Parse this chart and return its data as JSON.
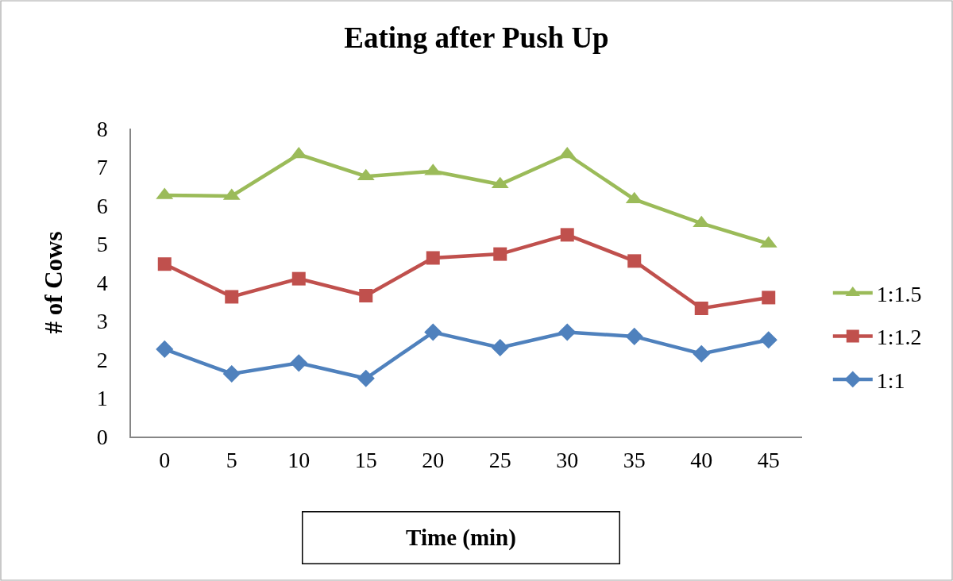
{
  "chart_data": {
    "type": "line",
    "title": "Eating after Push Up",
    "xlabel": "Time (min)",
    "ylabel": "# of Cows",
    "categories": [
      "0",
      "5",
      "10",
      "15",
      "20",
      "25",
      "30",
      "35",
      "40",
      "45"
    ],
    "ylim": [
      0,
      8
    ],
    "yticks": [
      0,
      1,
      2,
      3,
      4,
      5,
      6,
      7,
      8
    ],
    "grid": false,
    "legend": "right",
    "line_style": "solid",
    "series": [
      {
        "name": "1:1.5",
        "color": "#9bbb59",
        "marker": "triangle",
        "values": [
          6.27,
          6.25,
          7.33,
          6.76,
          6.89,
          6.55,
          7.33,
          6.16,
          5.54,
          5.01
        ]
      },
      {
        "name": "1:1.2",
        "color": "#c0504d",
        "marker": "square",
        "values": [
          4.48,
          3.63,
          4.1,
          3.66,
          4.64,
          4.74,
          5.24,
          4.56,
          3.33,
          3.61
        ]
      },
      {
        "name": "1:1",
        "color": "#4f81bd",
        "marker": "diamond",
        "values": [
          2.27,
          1.63,
          1.91,
          1.51,
          2.71,
          2.31,
          2.71,
          2.6,
          2.15,
          2.51
        ]
      }
    ]
  }
}
